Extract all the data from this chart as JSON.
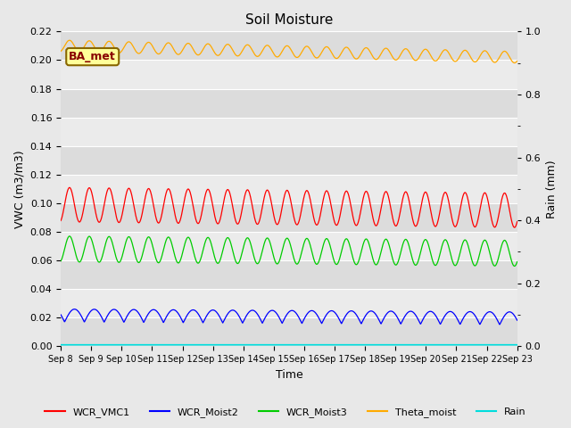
{
  "title": "Soil Moisture",
  "xlabel": "Time",
  "ylabel_left": "VWC (m3/m3)",
  "ylabel_right": "Rain (mm)",
  "ylim_left": [
    0.0,
    0.22
  ],
  "ylim_right": [
    0.0,
    1.0
  ],
  "yticks_left": [
    0.0,
    0.02,
    0.04,
    0.06,
    0.08,
    0.1,
    0.12,
    0.14,
    0.16,
    0.18,
    0.2,
    0.22
  ],
  "yticks_right": [
    0.0,
    0.2,
    0.4,
    0.6,
    0.8,
    1.0
  ],
  "xtick_labels": [
    "Sep 8",
    "Sep 9",
    "Sep 10",
    "Sep 11",
    "Sep 12",
    "Sep 13",
    "Sep 14",
    "Sep 15",
    "Sep 16",
    "Sep 17",
    "Sep 18",
    "Sep 19",
    "Sep 20",
    "Sep 21",
    "Sep 22",
    "Sep 23"
  ],
  "n_days": 15,
  "n_points": 1500,
  "series": {
    "WCR_VMC1": {
      "color": "#ff0000",
      "base": 0.099,
      "amp": 0.012,
      "period": 0.65,
      "decay": 0.004
    },
    "WCR_Moist2": {
      "color": "#0000ff",
      "base": 0.017,
      "amp": 0.009,
      "period": 0.65,
      "decay": 0.002
    },
    "WCR_Moist3": {
      "color": "#00cc00",
      "base": 0.068,
      "amp": 0.009,
      "period": 0.65,
      "decay": 0.003
    },
    "Theta_moist": {
      "color": "#ffaa00",
      "base": 0.21,
      "amp": 0.004,
      "period": 0.65,
      "decay": 0.008
    },
    "Rain": {
      "color": "#00dddd",
      "base": 0.0,
      "amp": 0.0,
      "period": 1.0,
      "decay": 0.0
    }
  },
  "legend_entries": [
    "WCR_VMC1",
    "WCR_Moist2",
    "WCR_Moist3",
    "Theta_moist",
    "Rain"
  ],
  "legend_colors": [
    "#ff0000",
    "#0000ff",
    "#00cc00",
    "#ffaa00",
    "#00dddd"
  ],
  "bg_color": "#e8e8e8",
  "plot_bg_even": "#dcdcdc",
  "plot_bg_odd": "#ebebeb",
  "grid_color": "#ffffff",
  "annotation_text": "BA_met",
  "annotation_bg": "#ffff99",
  "annotation_border": "#886600",
  "annotation_text_color": "#880000"
}
